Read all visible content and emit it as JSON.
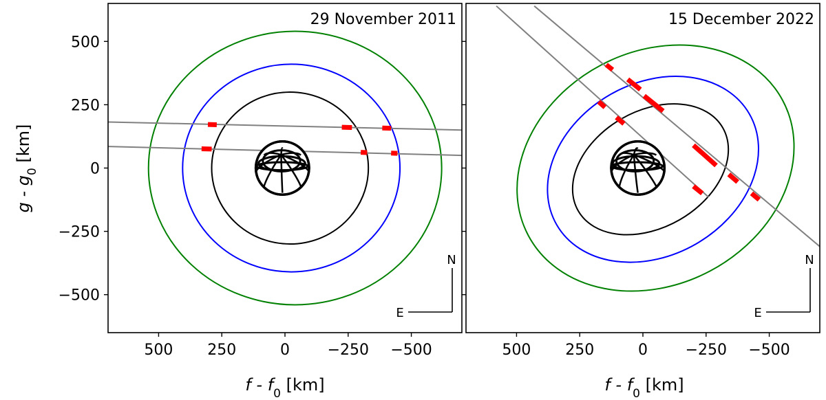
{
  "figure": {
    "ylabel_main": "g - g",
    "ylabel_sub": "0",
    "ylabel_unit": " [km]",
    "xlabel_main": "f - f",
    "xlabel_sub": "0",
    "xlabel_unit": " [km]"
  },
  "chart_data": [
    {
      "type": "scatter",
      "title": "29 November 2011",
      "xlim": [
        700,
        -700
      ],
      "ylim": [
        -650,
        650
      ],
      "xticks": [
        500,
        250,
        0,
        -250,
        -500
      ],
      "yticks": [
        500,
        250,
        0,
        -250,
        -500
      ],
      "xtick_labels": [
        "500",
        "250",
        "0",
        "−250",
        "−500"
      ],
      "ytick_labels": [
        "500",
        "250",
        "0",
        "−250",
        "−500"
      ],
      "compass": {
        "north": "N",
        "east": "E"
      },
      "colors": {
        "ring1": "#000000",
        "ring2": "#0000ff",
        "ring3": "#008000",
        "chord": "#808080",
        "detection": "#ff0000"
      },
      "ellipses": [
        {
          "name": "ring1",
          "cx": -20,
          "cy": 0,
          "a": 310,
          "b": 300,
          "angle": 0
        },
        {
          "name": "ring2",
          "cx": -25,
          "cy": 0,
          "a": 430,
          "b": 410,
          "angle": 0
        },
        {
          "name": "ring3",
          "cx": -40,
          "cy": 0,
          "a": 580,
          "b": 540,
          "angle": 0
        }
      ],
      "chords": [
        {
          "x1": 700,
          "y1": 182,
          "x2": -700,
          "y2": 150
        },
        {
          "x1": 700,
          "y1": 85,
          "x2": -700,
          "y2": 50
        }
      ],
      "detections": [
        {
          "x1": 305,
          "y1": 172,
          "x2": 270,
          "y2": 171
        },
        {
          "x1": -225,
          "y1": 161,
          "x2": -265,
          "y2": 160
        },
        {
          "x1": -385,
          "y1": 158,
          "x2": -420,
          "y2": 157
        },
        {
          "x1": 330,
          "y1": 76,
          "x2": 290,
          "y2": 75
        },
        {
          "x1": -300,
          "y1": 62,
          "x2": -325,
          "y2": 61
        },
        {
          "x1": -420,
          "y1": 59,
          "x2": -445,
          "y2": 58
        }
      ],
      "body": {
        "cx": 10,
        "cy": 0,
        "r": 105
      }
    },
    {
      "type": "scatter",
      "title": "15 December 2022",
      "xlim": [
        700,
        -700
      ],
      "ylim": [
        -650,
        650
      ],
      "xticks": [
        500,
        250,
        0,
        -250,
        -500
      ],
      "xtick_labels": [
        "500",
        "250",
        "0",
        "−250",
        "−500"
      ],
      "compass": {
        "north": "N",
        "east": "E"
      },
      "colors": {
        "ring1": "#000000",
        "ring2": "#0000ff",
        "ring3": "#008000",
        "chord": "#808080",
        "detection": "#ff0000"
      },
      "ellipses": [
        {
          "name": "ring1",
          "cx": -30,
          "cy": -5,
          "a": 330,
          "b": 230,
          "angle": 30
        },
        {
          "name": "ring2",
          "cx": -40,
          "cy": -5,
          "a": 440,
          "b": 340,
          "angle": 30
        },
        {
          "name": "ring3",
          "cx": -50,
          "cy": 0,
          "a": 570,
          "b": 460,
          "angle": 28
        }
      ],
      "chords": [
        {
          "x1": 580,
          "y1": 640,
          "x2": -260,
          "y2": -115
        },
        {
          "x1": 430,
          "y1": 640,
          "x2": -700,
          "y2": -310
        }
      ],
      "detections": [
        {
          "x1": 175,
          "y1": 262,
          "x2": 150,
          "y2": 240
        },
        {
          "x1": 105,
          "y1": 200,
          "x2": 75,
          "y2": 175
        },
        {
          "x1": -200,
          "y1": -72,
          "x2": -235,
          "y2": -100
        },
        {
          "x1": 145,
          "y1": 408,
          "x2": 120,
          "y2": 388
        },
        {
          "x1": 60,
          "y1": 350,
          "x2": 10,
          "y2": 310
        },
        {
          "x1": -5,
          "y1": 285,
          "x2": -80,
          "y2": 225
        },
        {
          "x1": -200,
          "y1": 90,
          "x2": -290,
          "y2": 10
        },
        {
          "x1": -340,
          "y1": -25,
          "x2": -375,
          "y2": -55
        },
        {
          "x1": -430,
          "y1": -100,
          "x2": -460,
          "y2": -125
        }
      ],
      "body": {
        "cx": 20,
        "cy": 0,
        "r": 105
      }
    }
  ]
}
